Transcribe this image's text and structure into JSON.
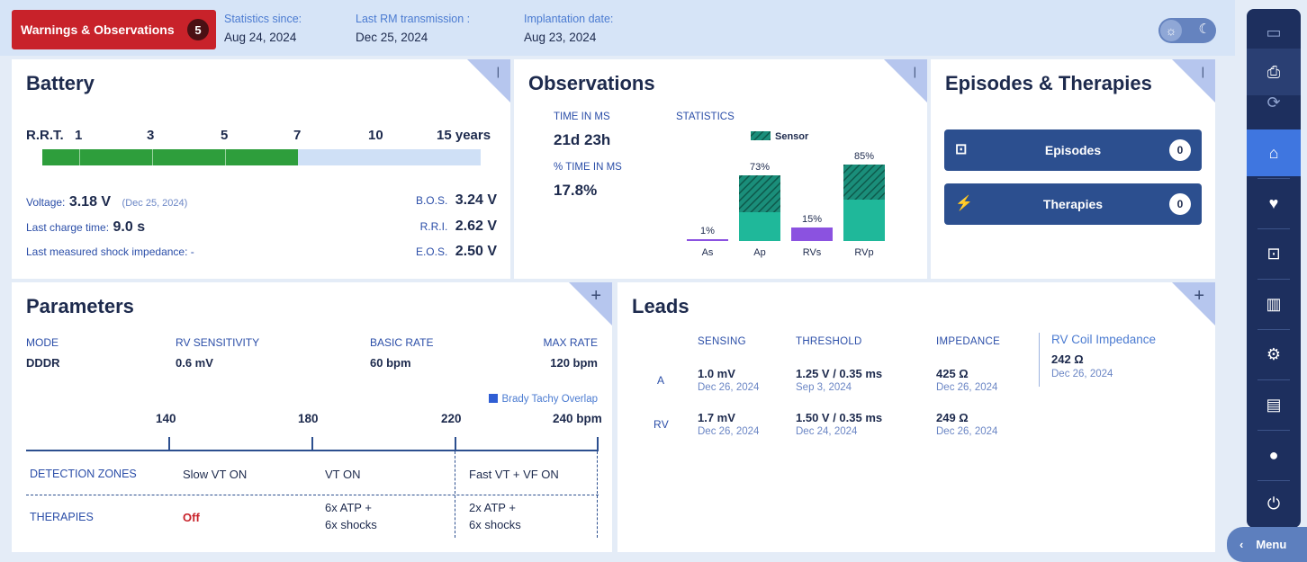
{
  "top": {
    "warnings_label": "Warnings & Observations",
    "warnings_count": "5",
    "stats_since_label": "Statistics since:",
    "stats_since_value": "Aug 24, 2024",
    "last_rm_label": "Last RM transmission :",
    "last_rm_value": "Dec 25, 2024",
    "implant_label": "Implantation date:",
    "implant_value": "Aug 23, 2024"
  },
  "battery": {
    "title": "Battery",
    "rrt_label": "R.R.T.",
    "scale": [
      "1",
      "3",
      "5",
      "7",
      "10",
      "15 years"
    ],
    "progress_years": 7,
    "voltage_label": "Voltage:",
    "voltage_value": "3.18 V",
    "voltage_date": "(Dec 25, 2024)",
    "charge_label": "Last charge time:",
    "charge_value": "9.0 s",
    "shock_label": "Last measured shock impedance: -",
    "bos_label": "B.O.S.",
    "bos_value": "3.24 V",
    "rri_label": "R.R.I.",
    "rri_value": "2.62 V",
    "eos_label": "E.O.S.",
    "eos_value": "2.50 V"
  },
  "observations": {
    "title": "Observations",
    "time_in_ms_label": "TIME IN MS",
    "time_in_ms_value": "21d 23h",
    "pct_ms_label": "% TIME IN MS",
    "pct_ms_value": "17.8%",
    "stats_label": "STATISTICS",
    "legend_sensor": "Sensor",
    "bar_labels": [
      "1%",
      "73%",
      "15%",
      "85%"
    ]
  },
  "chart_data": {
    "type": "bar",
    "categories": [
      "As",
      "Ap",
      "RVs",
      "RVp"
    ],
    "values": [
      1,
      73,
      15,
      85
    ],
    "series": [
      {
        "name": "Sensor",
        "values": [
          0,
          41,
          0,
          39
        ]
      }
    ],
    "ylim": [
      0,
      100
    ]
  },
  "episodes": {
    "title": "Episodes & Therapies",
    "episodes_label": "Episodes",
    "episodes_count": "0",
    "therapies_label": "Therapies",
    "therapies_count": "0"
  },
  "parameters": {
    "title": "Parameters",
    "mode_label": "MODE",
    "mode_value": "DDDR",
    "rvsens_label": "RV SENSITIVITY",
    "rvsens_value": "0.6 mV",
    "basic_label": "BASIC RATE",
    "basic_value": "60 bpm",
    "max_label": "MAX RATE",
    "max_value": "120 bpm",
    "overlap_label": "Brady Tachy Overlap",
    "scale": [
      "140",
      "180",
      "220",
      "240 bpm"
    ],
    "detection_label": "DETECTION ZONES",
    "zone1": "Slow VT ON",
    "zone2": "VT ON",
    "zone3": "Fast VT + VF ON",
    "therapies_label": "THERAPIES",
    "therapy1": "Off",
    "therapy2a": "6x ATP +",
    "therapy2b": "6x shocks",
    "therapy3a": "2x ATP +",
    "therapy3b": "6x shocks"
  },
  "leads": {
    "title": "Leads",
    "sensing_label": "SENSING",
    "threshold_label": "THRESHOLD",
    "impedance_label": "IMPEDANCE",
    "coil_label": "RV Coil Impedance",
    "coil_value": "242 Ω",
    "coil_date": "Dec 26, 2024",
    "rows": [
      {
        "lead": "A",
        "sensing": "1.0 mV",
        "sensing_date": "Dec 26, 2024",
        "threshold": "1.25 V / 0.35 ms",
        "threshold_date": "Sep 3, 2024",
        "impedance": "425 Ω",
        "impedance_date": "Dec 26, 2024"
      },
      {
        "lead": "RV",
        "sensing": "1.7 mV",
        "sensing_date": "Dec 26, 2024",
        "threshold": "1.50 V / 0.35 ms",
        "threshold_date": "Dec 24, 2024",
        "impedance": "249 Ω",
        "impedance_date": "Dec 26, 2024"
      }
    ]
  },
  "sidebar": {
    "menu_label": "Menu"
  }
}
